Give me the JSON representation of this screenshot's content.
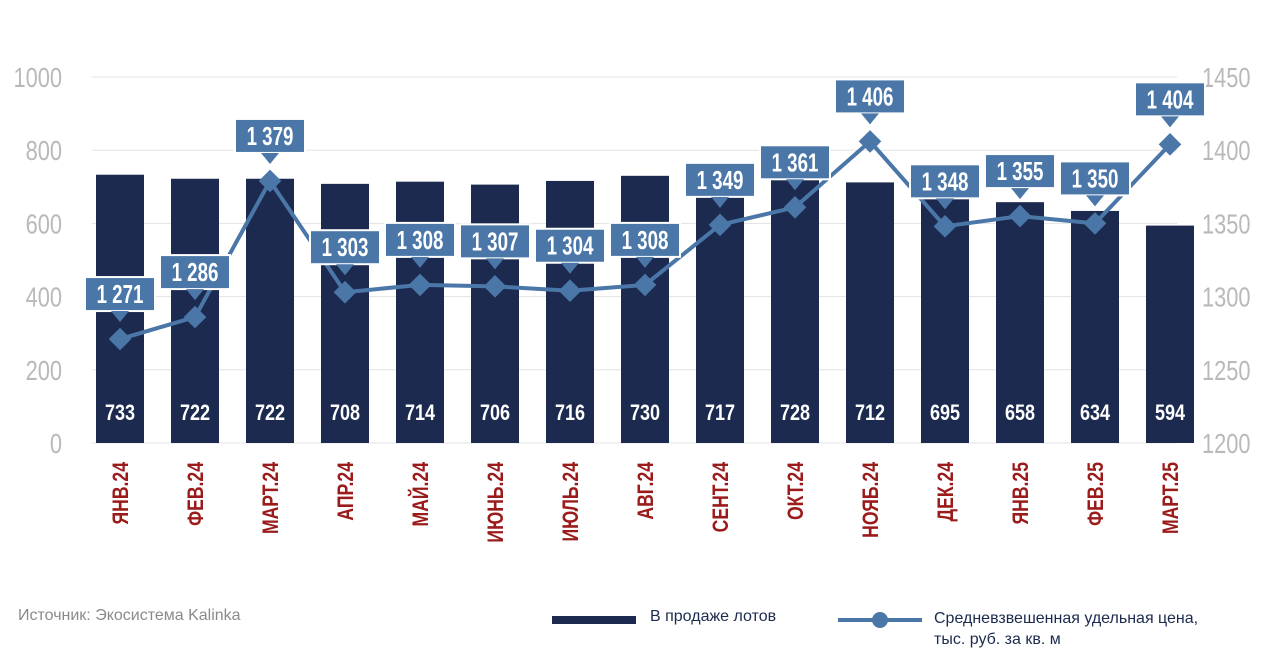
{
  "chart_data": {
    "type": "bar",
    "categories": [
      "ЯНВ.24",
      "ФЕВ.24",
      "МАРТ.24",
      "АПР.24",
      "МАЙ.24",
      "ИЮНЬ.24",
      "ИЮЛЬ.24",
      "АВГ.24",
      "СЕНТ.24",
      "ОКТ.24",
      "НОЯБ.24",
      "ДЕК.24",
      "ЯНВ.25",
      "ФЕВ.25",
      "МАРТ.25"
    ],
    "series": [
      {
        "name": "В продаже лотов",
        "axis": "left",
        "type": "bar",
        "values": [
          733,
          722,
          722,
          708,
          714,
          706,
          716,
          730,
          717,
          728,
          712,
          695,
          658,
          634,
          594
        ],
        "data_labels": [
          "733",
          "722",
          "722",
          "708",
          "714",
          "706",
          "716",
          "730",
          "717",
          "728",
          "712",
          "695",
          "658",
          "634",
          "594"
        ],
        "color": "#1b2a4e"
      },
      {
        "name": "Средневзвешенная удельная цена, тыс. руб. за кв. м",
        "axis": "right",
        "type": "line",
        "values": [
          1271,
          1286,
          1379,
          1303,
          1308,
          1307,
          1304,
          1308,
          1349,
          1361,
          1406,
          1348,
          1355,
          1350,
          1404
        ],
        "data_labels": [
          "1 271",
          "1 286",
          "1 379",
          "1 303",
          "1 308",
          "1 307",
          "1 304",
          "1 308",
          "1 349",
          "1 361",
          "1 406",
          "1 348",
          "1 355",
          "1 350",
          "1 404"
        ],
        "color": "#4a77a8"
      }
    ],
    "left_axis": {
      "ylim": [
        0,
        1000
      ],
      "ticks": [
        "0",
        "200",
        "400",
        "600",
        "800",
        "1000"
      ]
    },
    "right_axis": {
      "ylim": [
        1200,
        1450
      ],
      "ticks": [
        "1200",
        "1250",
        "1300",
        "1350",
        "1400",
        "1450"
      ]
    },
    "grid": true,
    "legend_position": "bottom-right",
    "category_label_color": "#9b1b1b"
  },
  "footer": {
    "source": "Источник: Экосистема Kalinka",
    "legend_bar_label": "В продаже лотов",
    "legend_line_label_line1": "Средневзвешенная удельная цена,",
    "legend_line_label_line2": "тыс. руб. за кв. м"
  }
}
